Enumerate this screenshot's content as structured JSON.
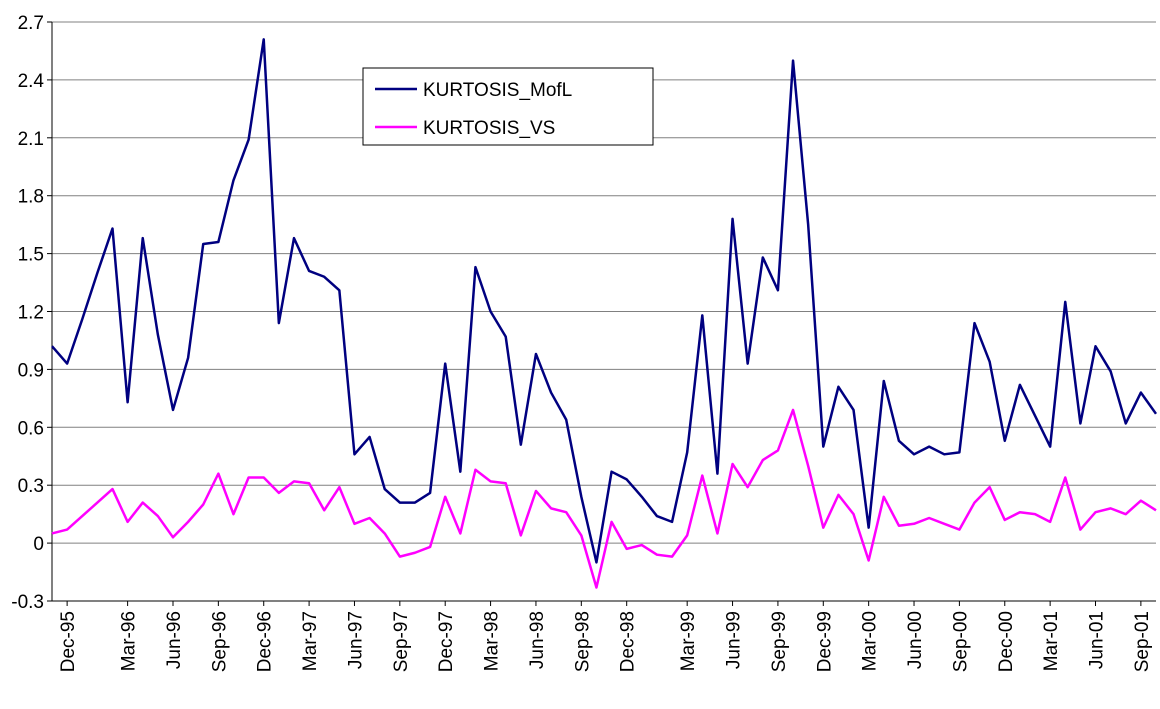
{
  "chart_data": {
    "type": "line",
    "categories": [
      null,
      "Dec-95",
      null,
      null,
      null,
      "Mar-96",
      null,
      null,
      "Jun-96",
      null,
      null,
      "Sep-96",
      null,
      null,
      "Dec-96",
      null,
      null,
      "Mar-97",
      null,
      null,
      "Jun-97",
      null,
      null,
      "Sep-97",
      null,
      null,
      "Dec-97",
      null,
      null,
      "Mar-98",
      null,
      null,
      "Jun-98",
      null,
      null,
      "Sep-98",
      null,
      null,
      "Dec-98",
      null,
      null,
      null,
      "Mar-99",
      null,
      null,
      "Jun-99",
      null,
      null,
      "Sep-99",
      null,
      null,
      "Dec-99",
      null,
      null,
      "Mar-00",
      null,
      null,
      "Jun-00",
      null,
      null,
      "Sep-00",
      null,
      null,
      "Dec-00",
      null,
      null,
      "Mar-01",
      null,
      null,
      "Jun-01",
      null,
      null,
      "Sep-01",
      null
    ],
    "series": [
      {
        "name": "KURTOSIS_MofL",
        "color": "#000080",
        "values": [
          1.02,
          0.93,
          1.16,
          1.4,
          1.63,
          0.73,
          1.58,
          1.08,
          0.69,
          0.96,
          1.55,
          1.56,
          1.88,
          2.09,
          2.61,
          1.14,
          1.58,
          1.41,
          1.38,
          1.31,
          0.46,
          0.55,
          0.28,
          0.21,
          0.21,
          0.26,
          0.93,
          0.37,
          1.43,
          1.2,
          1.07,
          0.51,
          0.98,
          0.78,
          0.64,
          0.24,
          -0.1,
          0.37,
          0.33,
          0.24,
          0.14,
          0.11,
          0.47,
          1.18,
          0.36,
          1.68,
          0.93,
          1.48,
          1.31,
          2.5,
          1.65,
          0.5,
          0.81,
          0.69,
          0.08,
          0.84,
          0.53,
          0.46,
          0.5,
          0.46,
          0.47,
          1.14,
          0.94,
          0.53,
          0.82,
          0.66,
          0.5,
          1.25,
          0.62,
          1.02,
          0.89,
          0.62,
          0.78,
          0.67
        ]
      },
      {
        "name": "KURTOSIS_VS",
        "color": "#ff00ff",
        "values": [
          0.05,
          0.07,
          0.14,
          0.21,
          0.28,
          0.11,
          0.21,
          0.14,
          0.03,
          0.11,
          0.2,
          0.36,
          0.15,
          0.34,
          0.34,
          0.26,
          0.32,
          0.31,
          0.17,
          0.29,
          0.1,
          0.13,
          0.05,
          -0.07,
          -0.05,
          -0.02,
          0.24,
          0.05,
          0.38,
          0.32,
          0.31,
          0.04,
          0.27,
          0.18,
          0.16,
          0.04,
          -0.23,
          0.11,
          -0.03,
          -0.01,
          -0.06,
          -0.07,
          0.04,
          0.35,
          0.05,
          0.41,
          0.29,
          0.43,
          0.48,
          0.69,
          0.4,
          0.08,
          0.25,
          0.15,
          -0.09,
          0.24,
          0.09,
          0.1,
          0.13,
          0.1,
          0.07,
          0.21,
          0.29,
          0.12,
          0.16,
          0.15,
          0.11,
          0.34,
          0.07,
          0.16,
          0.18,
          0.15,
          0.22,
          0.17
        ]
      }
    ],
    "ylim": [
      -0.3,
      2.7
    ],
    "yticks": [
      -0.3,
      0,
      0.3,
      0.6,
      0.9,
      1.2,
      1.5,
      1.8,
      2.1,
      2.4,
      2.7
    ],
    "grid": true,
    "legend": "top"
  }
}
